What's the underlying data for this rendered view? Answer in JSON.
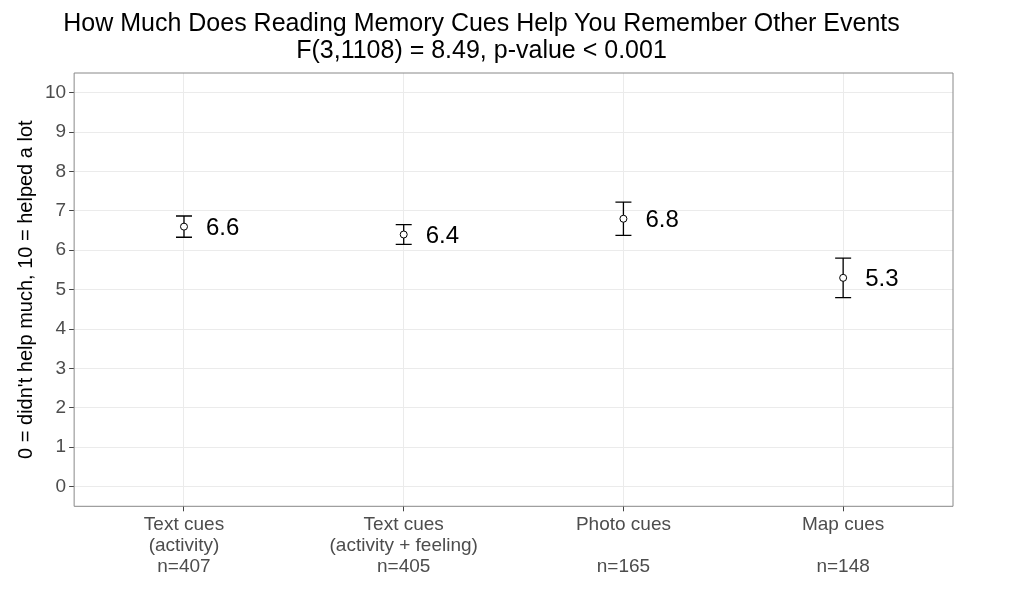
{
  "chart_data": {
    "type": "scatter",
    "title": "How Much Does Reading Memory Cues Help You Remember Other Events",
    "subtitle": "F(3,1108) = 8.49, p-value < 0.001",
    "ylabel": "0 = didn't help much, 10 = helped a lot",
    "categories": [
      "Text cues\n(activity)\nn=407",
      "Text cues\n(activity + feeling)\nn=405",
      "Photo cues\n\nn=165",
      "Map cues\n\nn=148"
    ],
    "values": [
      6.6,
      6.4,
      6.8,
      5.3
    ],
    "errors": [
      0.27,
      0.25,
      0.42,
      0.5
    ],
    "color": "#000000",
    "marker": "circle",
    "data_labels": true,
    "ylim": [
      -0.5,
      10.5
    ],
    "yticks": [
      0,
      1,
      2,
      3,
      4,
      5,
      6,
      7,
      8,
      9,
      10
    ],
    "grid": true,
    "legend": false
  }
}
